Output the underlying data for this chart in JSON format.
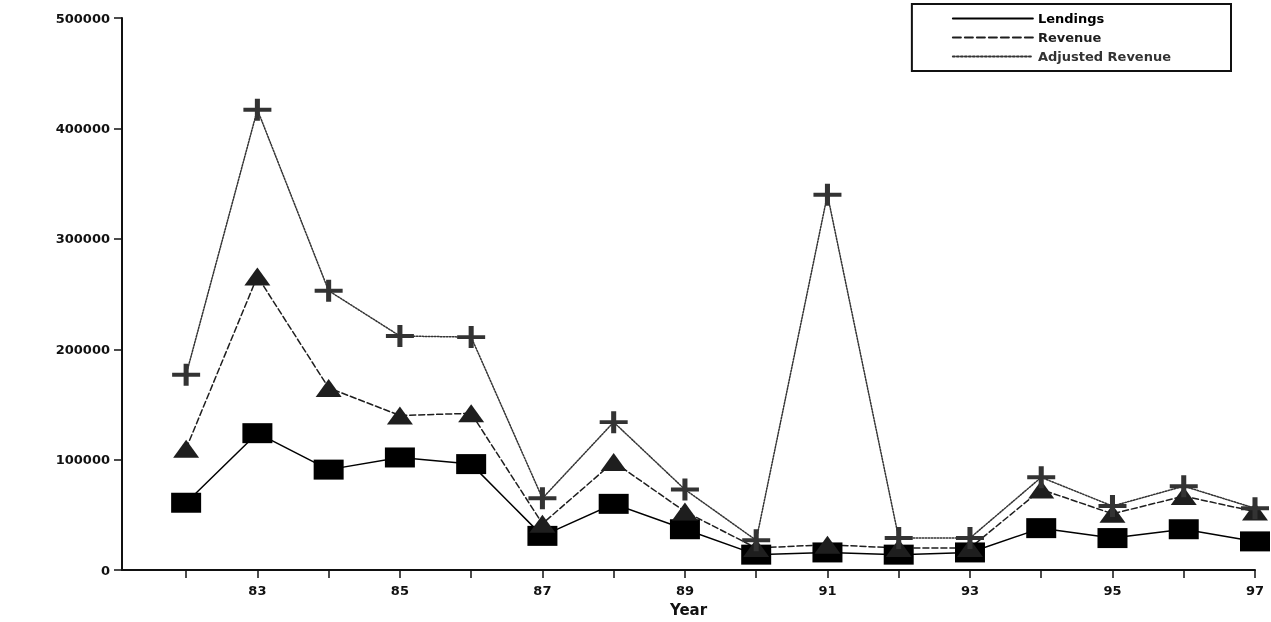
{
  "chart_data": {
    "type": "line",
    "xlabel": "Year",
    "x": [
      82,
      83,
      84,
      85,
      86,
      87,
      88,
      89,
      90,
      91,
      92,
      93,
      94,
      95,
      96,
      97
    ],
    "series": [
      {
        "name": "Lendings",
        "color": "#000000",
        "marker": "square",
        "line_style": "solid",
        "values": [
          61000,
          124000,
          91000,
          102000,
          96000,
          31000,
          60000,
          37000,
          14000,
          16000,
          14000,
          16000,
          38000,
          29000,
          37000,
          26000
        ]
      },
      {
        "name": "Revenue",
        "color": "#1e1e1e",
        "marker": "triangle",
        "line_style": "dashed",
        "values": [
          110000,
          266000,
          165000,
          140000,
          142000,
          42000,
          98000,
          53000,
          20000,
          23000,
          20000,
          20000,
          73000,
          51000,
          67000,
          53000
        ]
      },
      {
        "name": "Adjusted Revenue",
        "color": "#333333",
        "marker": "cross",
        "line_style": "dotted",
        "values": [
          177000,
          417000,
          253000,
          212000,
          211000,
          65000,
          134000,
          73000,
          27000,
          340000,
          29000,
          29000,
          84000,
          58000,
          76000,
          56000
        ]
      }
    ],
    "xlim": [
      81.1,
      97
    ],
    "xticks": [
      {
        "value": 82,
        "label": null
      },
      83,
      {
        "value": 84,
        "label": null
      },
      85,
      {
        "value": 86,
        "label": null
      },
      87,
      {
        "value": 88,
        "label": null
      },
      89,
      {
        "value": 90,
        "label": null
      },
      91,
      {
        "value": 92,
        "label": null
      },
      93,
      {
        "value": 94,
        "label": null
      },
      95,
      {
        "value": 96,
        "label": null
      },
      97
    ],
    "ylim": [
      0,
      500000
    ],
    "yticks": [
      0,
      100000,
      200000,
      300000,
      400000,
      500000
    ],
    "grid": false,
    "legend": "top right"
  }
}
